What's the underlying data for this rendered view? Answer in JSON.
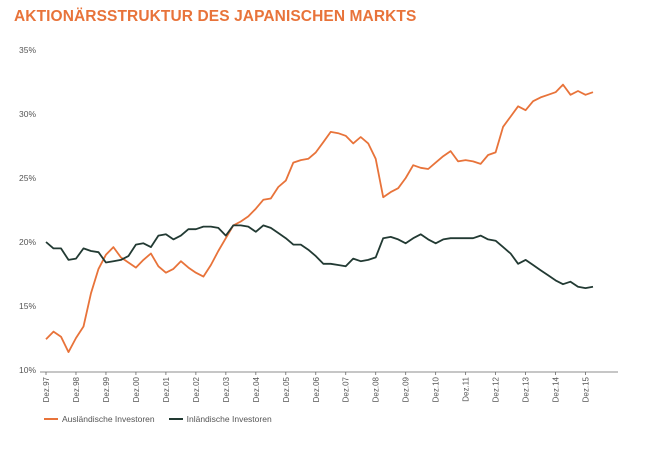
{
  "chart_data": {
    "type": "line",
    "title": "AKTIONÄRSSTRUKTUR DES JAPANISCHEN MARKTS",
    "title_color": "#e8733a",
    "ylim": [
      10,
      35
    ],
    "yticks": [
      "10%",
      "15%",
      "20%",
      "25%",
      "30%",
      "35%"
    ],
    "ytick_values": [
      10,
      15,
      20,
      25,
      30,
      35
    ],
    "x_range": [
      1997,
      2015.95
    ],
    "xticks": [
      "Dez.97",
      "Dez.98",
      "Dez.99",
      "Dez.00",
      "Dez.01",
      "Dez.02",
      "Dez.03",
      "Dez.04",
      "Dez.05",
      "Dez.06",
      "Dez.07",
      "Dez.08",
      "Dez.09",
      "Dez.10",
      "Dez.11",
      "Dez.12",
      "Dez.13",
      "Dez.14",
      "Dez.15"
    ],
    "xtick_values": [
      1997,
      1998,
      1999,
      2000,
      2001,
      2002,
      2003,
      2004,
      2005,
      2006,
      2007,
      2008,
      2009,
      2010,
      2011,
      2012,
      2013,
      2014,
      2015
    ],
    "grid": false,
    "legend_position": "bottom-left",
    "series": [
      {
        "name": "Ausländische Investoren",
        "color": "#e8733a",
        "x": [
          1997.0,
          1997.25,
          1997.5,
          1997.75,
          1998.0,
          1998.25,
          1998.5,
          1998.75,
          1999.0,
          1999.25,
          1999.5,
          1999.75,
          2000.0,
          2000.25,
          2000.5,
          2000.75,
          2001.0,
          2001.25,
          2001.5,
          2001.75,
          2002.0,
          2002.25,
          2002.5,
          2002.75,
          2003.0,
          2003.25,
          2003.5,
          2003.75,
          2004.0,
          2004.25,
          2004.5,
          2004.75,
          2005.0,
          2005.25,
          2005.5,
          2005.75,
          2006.0,
          2006.25,
          2006.5,
          2006.75,
          2007.0,
          2007.25,
          2007.5,
          2007.75,
          2008.0,
          2008.25,
          2008.5,
          2008.75,
          2009.0,
          2009.25,
          2009.5,
          2009.75,
          2010.0,
          2010.25,
          2010.5,
          2010.75,
          2011.0,
          2011.25,
          2011.5,
          2011.75,
          2012.0,
          2012.25,
          2012.5,
          2012.75,
          2013.0,
          2013.25,
          2013.5,
          2013.75,
          2014.0,
          2014.25,
          2014.5,
          2014.75,
          2015.0,
          2015.25
        ],
        "values": [
          12.4,
          13.0,
          12.6,
          11.4,
          12.5,
          13.4,
          16.0,
          17.9,
          19.0,
          19.6,
          18.8,
          18.4,
          18.0,
          18.6,
          19.1,
          18.1,
          17.6,
          17.9,
          18.5,
          18.0,
          17.6,
          17.3,
          18.2,
          19.3,
          20.3,
          21.3,
          21.6,
          22.0,
          22.6,
          23.3,
          23.4,
          24.3,
          24.8,
          26.2,
          26.4,
          26.5,
          27.0,
          27.8,
          28.6,
          28.5,
          28.3,
          27.7,
          28.2,
          27.7,
          26.5,
          23.5,
          23.9,
          24.2,
          25.0,
          26.0,
          25.8,
          25.7,
          26.2,
          26.7,
          27.1,
          26.3,
          26.4,
          26.3,
          26.1,
          26.8,
          27.0,
          29.0,
          29.8,
          30.6,
          30.3,
          31.0,
          31.3,
          31.5,
          31.7,
          32.3,
          31.5,
          31.8,
          31.5,
          31.7
        ]
      },
      {
        "name": "Inländische Investoren",
        "color": "#223a33",
        "x": [
          1997.0,
          1997.25,
          1997.5,
          1997.75,
          1998.0,
          1998.25,
          1998.5,
          1998.75,
          1999.0,
          1999.25,
          1999.5,
          1999.75,
          2000.0,
          2000.25,
          2000.5,
          2000.75,
          2001.0,
          2001.25,
          2001.5,
          2001.75,
          2002.0,
          2002.25,
          2002.5,
          2002.75,
          2003.0,
          2003.25,
          2003.5,
          2003.75,
          2004.0,
          2004.25,
          2004.5,
          2004.75,
          2005.0,
          2005.25,
          2005.5,
          2005.75,
          2006.0,
          2006.25,
          2006.5,
          2006.75,
          2007.0,
          2007.25,
          2007.5,
          2007.75,
          2008.0,
          2008.25,
          2008.5,
          2008.75,
          2009.0,
          2009.25,
          2009.5,
          2009.75,
          2010.0,
          2010.25,
          2010.5,
          2010.75,
          2011.0,
          2011.25,
          2011.5,
          2011.75,
          2012.0,
          2012.25,
          2012.5,
          2012.75,
          2013.0,
          2013.25,
          2013.5,
          2013.75,
          2014.0,
          2014.25,
          2014.5,
          2014.75,
          2015.0,
          2015.25
        ],
        "values": [
          20.0,
          19.5,
          19.5,
          18.6,
          18.7,
          19.5,
          19.3,
          19.2,
          18.4,
          18.5,
          18.6,
          18.9,
          19.8,
          19.9,
          19.6,
          20.5,
          20.6,
          20.2,
          20.5,
          21.0,
          21.0,
          21.2,
          21.2,
          21.1,
          20.5,
          21.3,
          21.3,
          21.2,
          20.8,
          21.3,
          21.1,
          20.7,
          20.3,
          19.8,
          19.8,
          19.4,
          18.9,
          18.3,
          18.3,
          18.2,
          18.1,
          18.7,
          18.5,
          18.6,
          18.8,
          20.3,
          20.4,
          20.2,
          19.9,
          20.3,
          20.6,
          20.2,
          19.9,
          20.2,
          20.3,
          20.3,
          20.3,
          20.3,
          20.5,
          20.2,
          20.1,
          19.6,
          19.1,
          18.3,
          18.6,
          18.2,
          17.8,
          17.4,
          17.0,
          16.7,
          16.9,
          16.5,
          16.4,
          16.5
        ]
      }
    ]
  }
}
